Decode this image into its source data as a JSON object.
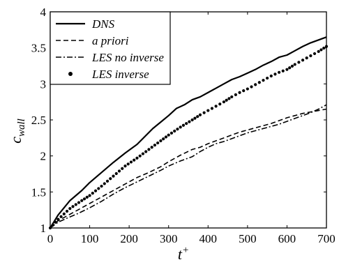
{
  "chart_data": {
    "type": "line",
    "xlabel": {
      "base": "t",
      "sup": "+"
    },
    "ylabel": {
      "base": "c",
      "sub": "wall"
    },
    "xlim": [
      0,
      700
    ],
    "ylim": [
      1,
      4
    ],
    "xticks": [
      "0",
      "100",
      "200",
      "300",
      "400",
      "500",
      "600",
      "700"
    ],
    "yticks": [
      "1",
      "1.5",
      "2",
      "2.5",
      "3",
      "3.5",
      "4"
    ],
    "grid": false,
    "legend_position": "top-left",
    "series": [
      {
        "name": "DNS",
        "style": "solid",
        "x": [
          0,
          20,
          50,
          80,
          100,
          130,
          160,
          190,
          220,
          240,
          260,
          280,
          300,
          320,
          340,
          360,
          380,
          400,
          420,
          440,
          460,
          480,
          500,
          520,
          540,
          560,
          580,
          600,
          620,
          640,
          660,
          680,
          700
        ],
        "y": [
          1.0,
          1.18,
          1.38,
          1.52,
          1.63,
          1.77,
          1.91,
          2.04,
          2.16,
          2.27,
          2.38,
          2.47,
          2.56,
          2.66,
          2.71,
          2.78,
          2.82,
          2.88,
          2.94,
          3.0,
          3.06,
          3.1,
          3.15,
          3.2,
          3.26,
          3.31,
          3.37,
          3.4,
          3.46,
          3.52,
          3.57,
          3.61,
          3.65
        ]
      },
      {
        "name": "a priori",
        "style": "dashed",
        "x": [
          0,
          20,
          50,
          80,
          100,
          130,
          160,
          190,
          220,
          250,
          280,
          300,
          330,
          360,
          380,
          400,
          420,
          440,
          460,
          480,
          500,
          520,
          540,
          560,
          580,
          600,
          620,
          640,
          660,
          680,
          700
        ],
        "y": [
          1.0,
          1.1,
          1.19,
          1.28,
          1.34,
          1.43,
          1.52,
          1.61,
          1.7,
          1.77,
          1.85,
          1.92,
          2.01,
          2.09,
          2.12,
          2.17,
          2.21,
          2.25,
          2.29,
          2.33,
          2.36,
          2.39,
          2.42,
          2.45,
          2.49,
          2.53,
          2.56,
          2.59,
          2.61,
          2.63,
          2.65
        ]
      },
      {
        "name": "LES no inverse",
        "style": "dashdot",
        "x": [
          0,
          20,
          40,
          70,
          100,
          130,
          160,
          190,
          220,
          250,
          280,
          300,
          330,
          360,
          380,
          400,
          420,
          440,
          460,
          480,
          500,
          520,
          540,
          560,
          580,
          600,
          620,
          640,
          660,
          680,
          700
        ],
        "y": [
          1.0,
          1.08,
          1.13,
          1.2,
          1.28,
          1.37,
          1.47,
          1.56,
          1.64,
          1.72,
          1.8,
          1.86,
          1.93,
          1.99,
          2.06,
          2.12,
          2.17,
          2.2,
          2.24,
          2.28,
          2.32,
          2.35,
          2.38,
          2.41,
          2.44,
          2.48,
          2.52,
          2.56,
          2.6,
          2.65,
          2.71
        ]
      },
      {
        "name": "LES inverse",
        "style": "dotted",
        "x": [
          0,
          20,
          50,
          80,
          100,
          130,
          160,
          190,
          220,
          250,
          280,
          300,
          330,
          360,
          380,
          400,
          420,
          440,
          460,
          480,
          500,
          520,
          540,
          560,
          580,
          600,
          620,
          640,
          660,
          680,
          700
        ],
        "y": [
          1.0,
          1.12,
          1.27,
          1.38,
          1.45,
          1.58,
          1.72,
          1.86,
          1.97,
          2.09,
          2.21,
          2.29,
          2.4,
          2.5,
          2.57,
          2.63,
          2.69,
          2.75,
          2.82,
          2.88,
          2.93,
          2.99,
          3.05,
          3.11,
          3.16,
          3.2,
          3.27,
          3.33,
          3.39,
          3.45,
          3.52
        ]
      }
    ]
  }
}
